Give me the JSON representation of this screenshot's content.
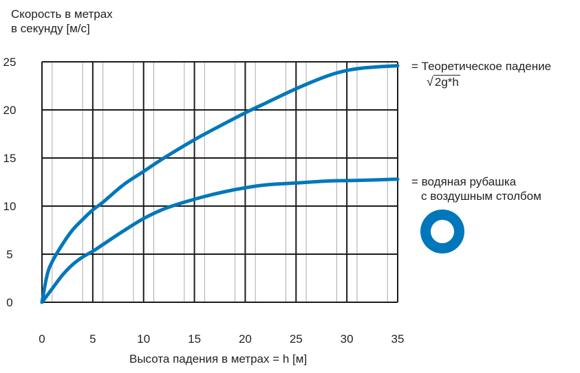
{
  "chart_data": {
    "type": "line",
    "ylabel_lines": [
      "Скорость в метрах",
      "в секунду [м/с]"
    ],
    "xlabel": "Высота падения в метрах = h [м]",
    "xlim": [
      0,
      35
    ],
    "ylim": [
      0,
      25
    ],
    "xticks": [
      "0",
      "5",
      "10",
      "15",
      "20",
      "25",
      "30",
      "35"
    ],
    "yticks": [
      "0",
      "5",
      "10",
      "15",
      "20",
      "25"
    ],
    "grid": true,
    "legend_position": "right",
    "series": [
      {
        "name": "= Теоретическое падение",
        "formula": "2g*h",
        "color": "#0077bb",
        "x": [
          0,
          0.5,
          1,
          2,
          3,
          4,
          5,
          6,
          8,
          10,
          12,
          15,
          18,
          20,
          22,
          25,
          28,
          30,
          32,
          35
        ],
        "y": [
          0,
          2.8,
          4.2,
          6.0,
          7.5,
          8.6,
          9.6,
          10.4,
          12.2,
          13.6,
          15.0,
          16.9,
          18.6,
          19.7,
          20.7,
          22.2,
          23.5,
          24.1,
          24.4,
          24.6
        ]
      },
      {
        "name_lines": [
          "= водяная рубашка",
          "с воздушным столбом"
        ],
        "color": "#0077bb",
        "x": [
          0,
          1,
          2,
          3,
          4,
          5,
          6,
          8,
          10,
          12,
          14,
          16,
          18,
          20,
          22,
          25,
          28,
          30,
          32,
          35
        ],
        "y": [
          0,
          1.4,
          2.8,
          3.9,
          4.7,
          5.3,
          6.0,
          7.4,
          8.7,
          9.7,
          10.4,
          11.0,
          11.5,
          11.9,
          12.2,
          12.4,
          12.6,
          12.65,
          12.7,
          12.8
        ]
      }
    ]
  }
}
